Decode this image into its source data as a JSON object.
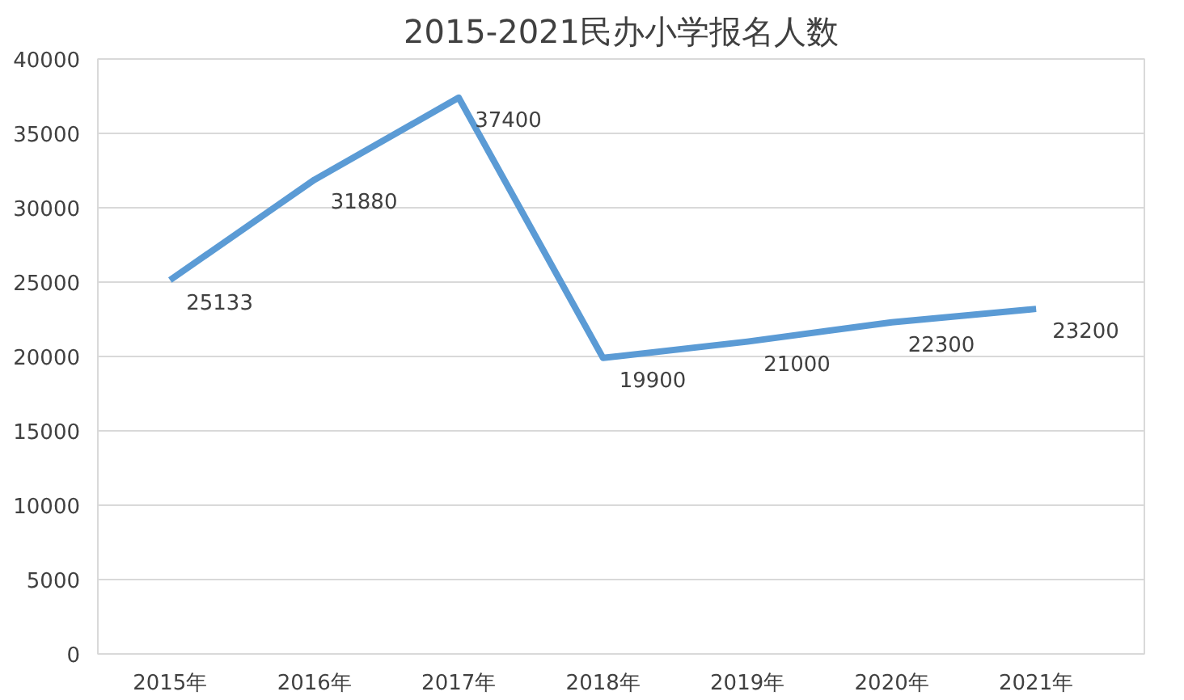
{
  "chart_data": {
    "type": "line",
    "title": "2015-2021民办小学报名人数",
    "categories": [
      "2015年",
      "2016年",
      "2017年",
      "2018年",
      "2019年",
      "2020年",
      "2021年"
    ],
    "series": [
      {
        "color": "#5b9bd5",
        "values": [
          25133,
          31880,
          37400,
          19900,
          21000,
          22300,
          23200
        ]
      }
    ],
    "ylim": [
      0,
      40000
    ],
    "yticks": [
      0,
      5000,
      10000,
      15000,
      20000,
      25000,
      30000,
      35000,
      40000
    ],
    "grid": "y",
    "data_labels": true,
    "marker": "none",
    "line_style": "solid"
  }
}
